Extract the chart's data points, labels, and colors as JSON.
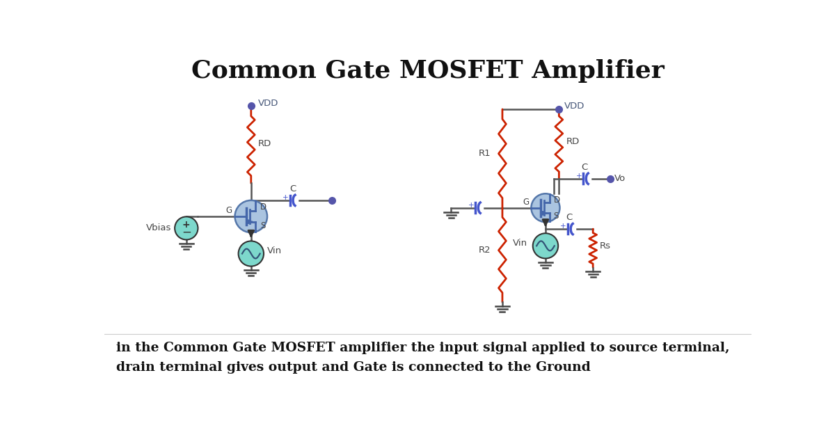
{
  "title": "Common Gate MOSFET Amplifier",
  "title_fontsize": 26,
  "title_fontweight": "bold",
  "description_line1": "in the Common Gate MOSFET amplifier the input signal applied to source terminal,",
  "description_line2": "drain terminal gives output and Gate is connected to the Ground",
  "desc_fontsize": 13.5,
  "bg_color": "#ffffff",
  "wire_color": "#555555",
  "resistor_color": "#cc2200",
  "cap_color": "#4455cc",
  "mosfet_fill": "#aac4e0",
  "mosfet_edge_color": "#5577aa",
  "source_fill": "#7dd8cc",
  "vdd_dot_color": "#5555aa",
  "out_dot_color": "#5555aa",
  "label_color": "#444444",
  "mosfet_inner_color": "#4466aa"
}
